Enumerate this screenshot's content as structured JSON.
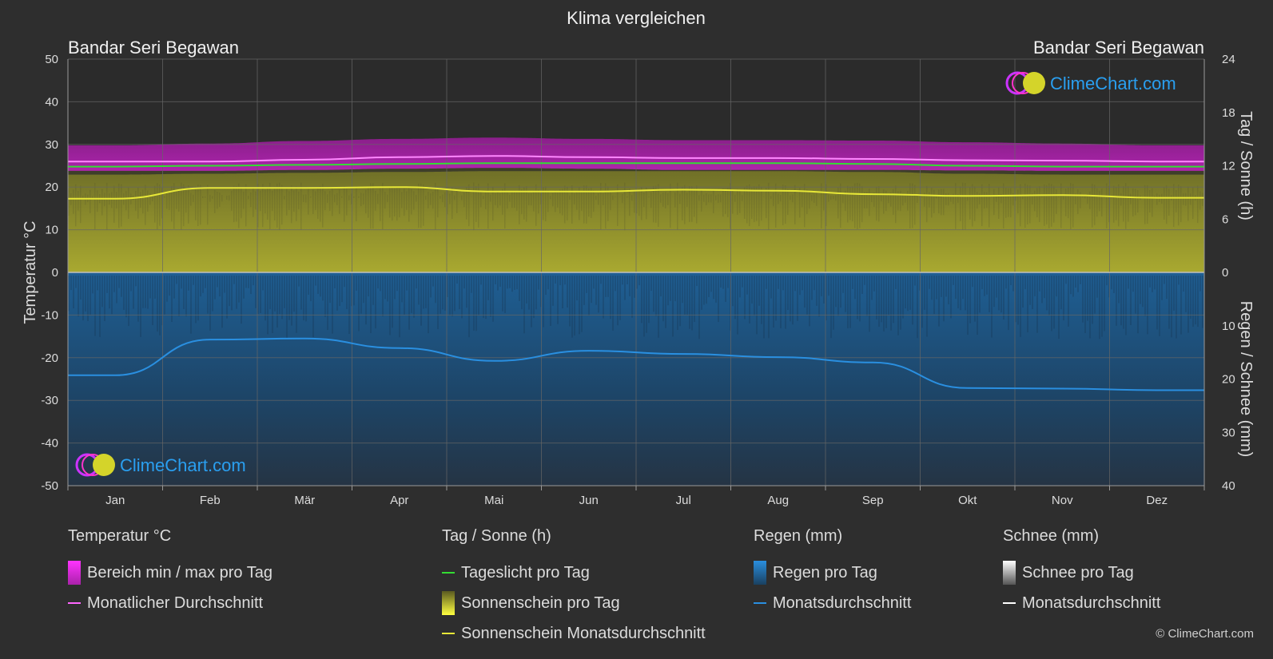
{
  "chart_data": {
    "type": "area",
    "title": "Klima vergleichen",
    "location_left": "Bandar Seri Begawan",
    "location_right": "Bandar Seri Begawan",
    "categories": [
      "Jan",
      "Feb",
      "Mär",
      "Apr",
      "Mai",
      "Jun",
      "Jul",
      "Aug",
      "Sep",
      "Okt",
      "Nov",
      "Dez"
    ],
    "y_left": {
      "label": "Temperatur °C",
      "range": [
        -50,
        50
      ],
      "ticks": [
        50,
        40,
        30,
        20,
        10,
        0,
        -10,
        -20,
        -30,
        -40,
        -50
      ]
    },
    "y_right_top": {
      "label": "Tag / Sonne (h)",
      "range": [
        0,
        24
      ],
      "ticks": [
        24,
        18,
        12,
        6,
        0
      ]
    },
    "y_right_bottom": {
      "label": "Regen / Schnee (mm)",
      "range": [
        0,
        40
      ],
      "ticks": [
        0,
        10,
        20,
        30,
        40
      ]
    },
    "grid": true,
    "series": [
      {
        "name": "Bereich min / max pro Tag",
        "unit": "°C",
        "min": [
          23.8,
          23.8,
          24.0,
          24.3,
          24.5,
          24.3,
          24.0,
          24.0,
          24.0,
          23.9,
          23.8,
          23.8
        ],
        "max": [
          29.8,
          30.2,
          30.8,
          31.3,
          31.6,
          31.3,
          31.0,
          31.0,
          30.9,
          30.5,
          30.2,
          29.8
        ]
      },
      {
        "name": "Monatlicher Durchschnitt",
        "unit": "°C",
        "values": [
          26.0,
          26.0,
          26.4,
          27.0,
          27.3,
          27.0,
          26.8,
          26.8,
          26.6,
          26.3,
          26.2,
          26.0
        ]
      },
      {
        "name": "Tageslicht pro Tag",
        "unit": "h",
        "values": [
          11.9,
          12.0,
          12.1,
          12.2,
          12.3,
          12.3,
          12.3,
          12.3,
          12.2,
          12.0,
          11.9,
          11.9
        ]
      },
      {
        "name": "Sonnenschein Monatsdurchschnitt",
        "unit": "h",
        "values": [
          8.3,
          9.5,
          9.5,
          9.6,
          9.1,
          9.1,
          9.3,
          9.2,
          8.8,
          8.6,
          8.7,
          8.4
        ]
      },
      {
        "name": "Regen Monatsdurchschnitt",
        "unit": "mm",
        "values": [
          19.3,
          12.6,
          12.4,
          14.2,
          16.6,
          14.7,
          15.3,
          15.9,
          16.9,
          21.7,
          21.8,
          22.1
        ]
      },
      {
        "name": "Schnee Monatsdurchschnitt",
        "unit": "mm",
        "values": [
          0,
          0,
          0,
          0,
          0,
          0,
          0,
          0,
          0,
          0,
          0,
          0
        ]
      }
    ]
  },
  "legend": {
    "groups": [
      {
        "title": "Temperatur °C",
        "items": [
          {
            "label": "Bereich min / max pro Tag",
            "kind": "box",
            "color": "#e020e0"
          },
          {
            "label": "Monatlicher Durchschnitt",
            "kind": "line",
            "color": "#ff66ff"
          }
        ]
      },
      {
        "title": "Tag / Sonne (h)",
        "items": [
          {
            "label": "Tageslicht pro Tag",
            "kind": "line",
            "color": "#33dd33"
          },
          {
            "label": "Sonnenschein pro Tag",
            "kind": "box",
            "color": "#d8d830"
          },
          {
            "label": "Sonnenschein Monatsdurchschnitt",
            "kind": "line",
            "color": "#e8e838"
          }
        ]
      },
      {
        "title": "Regen (mm)",
        "items": [
          {
            "label": "Regen pro Tag",
            "kind": "box",
            "color": "#2a8fe0"
          },
          {
            "label": "Monatsdurchschnitt",
            "kind": "line",
            "color": "#2a8fe0"
          }
        ]
      },
      {
        "title": "Schnee (mm)",
        "items": [
          {
            "label": "Schnee pro Tag",
            "kind": "box",
            "color": "#cccccc"
          },
          {
            "label": "Monatsdurchschnitt",
            "kind": "line",
            "color": "#ffffff"
          }
        ]
      }
    ]
  },
  "brand": {
    "name": "ClimeChart.com"
  },
  "copyright": "© ClimeChart.com"
}
